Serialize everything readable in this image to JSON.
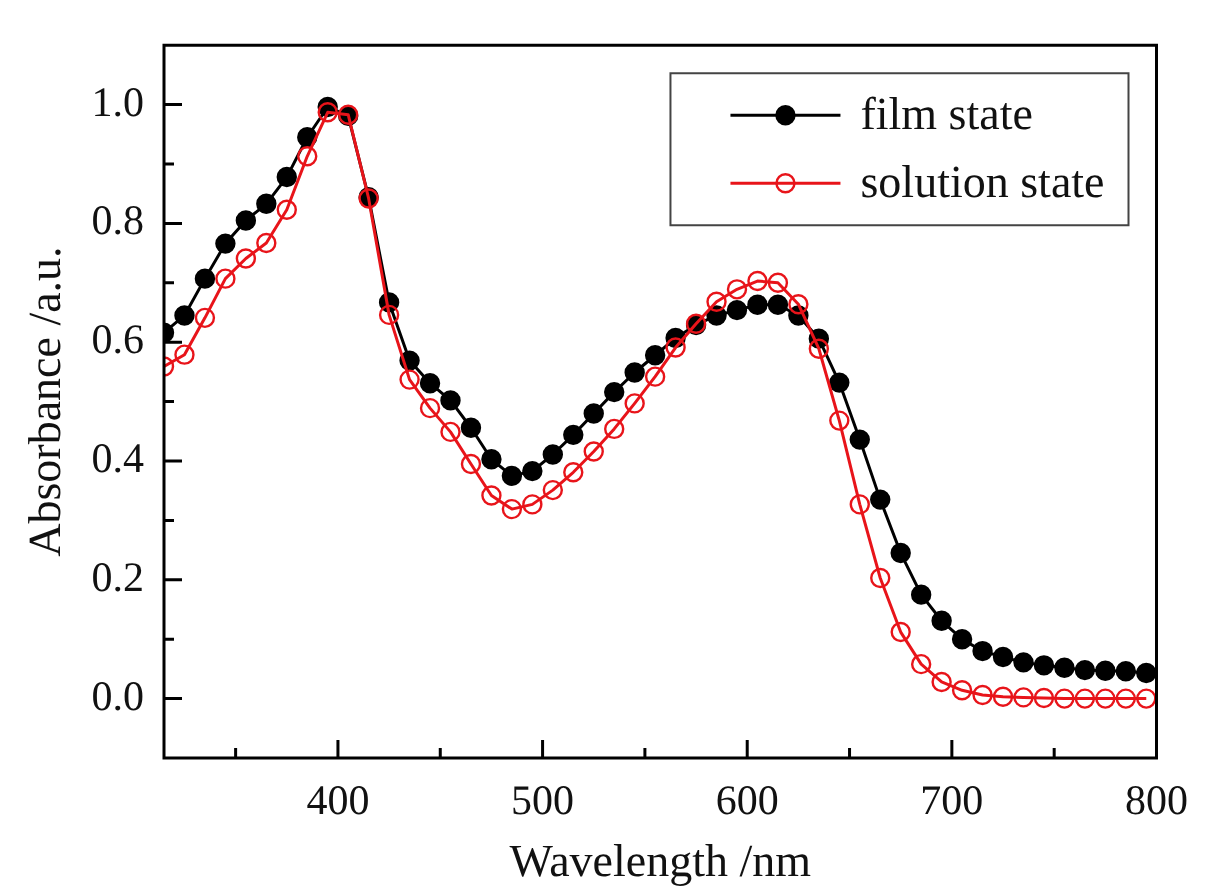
{
  "chart_data": {
    "type": "line",
    "xlabel": "Wavelength /nm",
    "ylabel": "Absorbance /a.u.",
    "x": [
      315,
      325,
      335,
      345,
      355,
      365,
      375,
      385,
      395,
      405,
      415,
      425,
      435,
      445,
      455,
      465,
      475,
      485,
      495,
      505,
      515,
      525,
      535,
      545,
      555,
      565,
      575,
      585,
      595,
      605,
      615,
      625,
      635,
      645,
      655,
      665,
      675,
      685,
      695,
      705,
      715,
      725,
      735,
      745,
      755,
      765,
      775,
      785,
      795
    ],
    "series": [
      {
        "name": "film state",
        "color": "#000000",
        "marker": "circle",
        "values": [
          0.616,
          0.645,
          0.707,
          0.766,
          0.805,
          0.833,
          0.878,
          0.945,
          0.996,
          0.981,
          0.844,
          0.667,
          0.569,
          0.531,
          0.502,
          0.456,
          0.403,
          0.375,
          0.383,
          0.411,
          0.444,
          0.48,
          0.516,
          0.549,
          0.578,
          0.607,
          0.629,
          0.645,
          0.654,
          0.663,
          0.663,
          0.645,
          0.606,
          0.532,
          0.436,
          0.335,
          0.245,
          0.175,
          0.131,
          0.1,
          0.08,
          0.07,
          0.061,
          0.056,
          0.052,
          0.048,
          0.047,
          0.046,
          0.043
        ]
      },
      {
        "name": "solution state",
        "color": "#e8141a",
        "marker": "circle",
        "values": [
          0.559,
          0.579,
          0.641,
          0.707,
          0.741,
          0.767,
          0.823,
          0.913,
          0.987,
          0.983,
          0.842,
          0.646,
          0.537,
          0.489,
          0.449,
          0.395,
          0.342,
          0.319,
          0.327,
          0.351,
          0.381,
          0.416,
          0.454,
          0.497,
          0.542,
          0.591,
          0.631,
          0.668,
          0.689,
          0.703,
          0.7,
          0.664,
          0.589,
          0.468,
          0.327,
          0.203,
          0.112,
          0.058,
          0.028,
          0.014,
          0.006,
          0.003,
          0.002,
          0.001,
          0,
          0,
          0,
          0,
          0
        ]
      }
    ],
    "xlim": [
      315,
      800
    ],
    "xticks": [
      {
        "value": 350,
        "label": null
      },
      400,
      {
        "value": 450,
        "label": null
      },
      500,
      {
        "value": 550,
        "label": null
      },
      600,
      {
        "value": 650,
        "label": null
      },
      700,
      {
        "value": 750,
        "label": null
      },
      800
    ],
    "ylim": [
      -0.1,
      1.1
    ],
    "yticks": [
      {
        "value": 0,
        "label": "0.0"
      },
      {
        "value": 0.1,
        "label": null
      },
      {
        "value": 0.2,
        "label": "0.2"
      },
      {
        "value": 0.3,
        "label": null
      },
      {
        "value": 0.4,
        "label": "0.4"
      },
      {
        "value": 0.5,
        "label": null
      },
      {
        "value": 0.6,
        "label": "0.6"
      },
      {
        "value": 0.7,
        "label": null
      },
      {
        "value": 0.8,
        "label": "0.8"
      },
      {
        "value": 0.9,
        "label": null
      },
      {
        "value": 1,
        "label": "1.0"
      }
    ],
    "legend": "top right",
    "grid": false,
    "line_style": "solid"
  }
}
